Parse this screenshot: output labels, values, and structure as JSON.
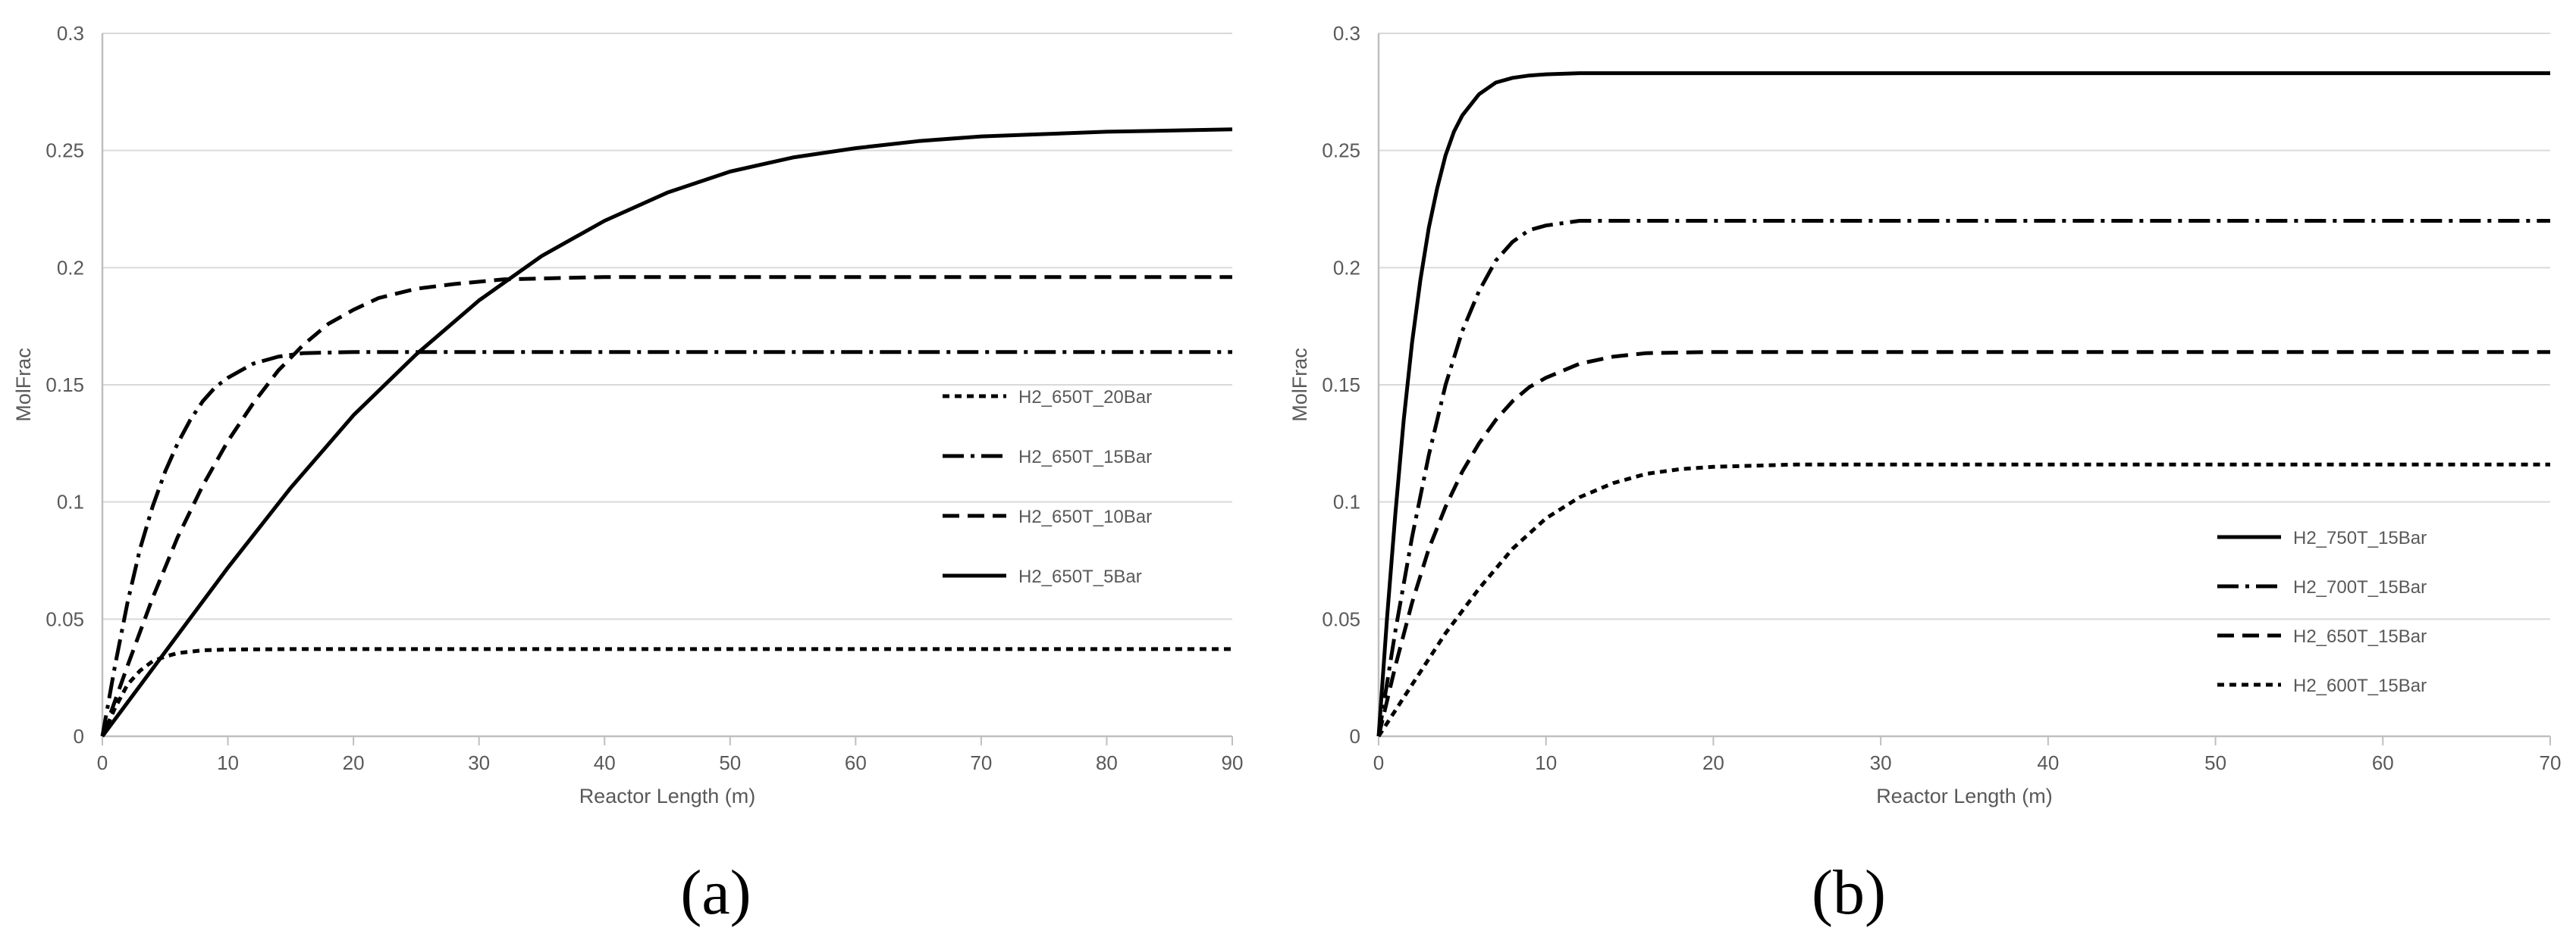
{
  "captions": {
    "a": "(a)",
    "b": "(b)"
  },
  "colors": {
    "line": "#000000",
    "grid": "#d9d9d9",
    "axis": "#bfbfbf",
    "text": "#595959"
  },
  "chart_data": [
    {
      "type": "line",
      "xlabel": "Reactor Length (m)",
      "ylabel": "MolFrac",
      "xlim": [
        0,
        90
      ],
      "ylim": [
        0,
        0.3
      ],
      "xticks": [
        0,
        10,
        20,
        30,
        40,
        50,
        60,
        70,
        80,
        90
      ],
      "yticks": [
        0,
        0.05,
        0.1,
        0.15,
        0.2,
        0.25,
        0.3
      ],
      "ytick_labels": [
        "0",
        "0.05",
        "0.1",
        "0.15",
        "0.2",
        "0.25",
        "0.3"
      ],
      "grid": "horizontal",
      "legend_position": "right",
      "series": [
        {
          "name": "H2_650T_20Bar",
          "style": "dotted",
          "x": [
            0,
            1,
            2,
            3,
            4,
            5,
            6,
            8,
            10,
            15,
            20,
            30,
            50,
            70,
            90
          ],
          "y": [
            0,
            0.012,
            0.022,
            0.028,
            0.032,
            0.034,
            0.0355,
            0.0367,
            0.037,
            0.0372,
            0.0372,
            0.0372,
            0.0372,
            0.0372,
            0.0372
          ]
        },
        {
          "name": "H2_650T_15Bar",
          "style": "dashdot",
          "x": [
            0,
            1,
            2,
            3,
            4,
            5,
            6,
            7,
            8,
            9,
            10,
            12,
            14,
            16,
            20,
            30,
            50,
            70,
            90
          ],
          "y": [
            0,
            0.03,
            0.057,
            0.08,
            0.098,
            0.113,
            0.125,
            0.135,
            0.143,
            0.149,
            0.153,
            0.159,
            0.162,
            0.1635,
            0.164,
            0.164,
            0.164,
            0.164,
            0.164
          ]
        },
        {
          "name": "H2_650T_10Bar",
          "style": "dashed",
          "x": [
            0,
            2,
            4,
            6,
            8,
            10,
            12,
            14,
            16,
            18,
            20,
            22,
            25,
            28,
            32,
            40,
            50,
            70,
            90
          ],
          "y": [
            0,
            0.03,
            0.059,
            0.085,
            0.107,
            0.126,
            0.142,
            0.156,
            0.167,
            0.176,
            0.182,
            0.187,
            0.191,
            0.193,
            0.195,
            0.196,
            0.196,
            0.196,
            0.196
          ]
        },
        {
          "name": "H2_650T_5Bar",
          "style": "solid",
          "x": [
            0,
            5,
            10,
            15,
            20,
            25,
            30,
            35,
            40,
            45,
            50,
            55,
            60,
            65,
            70,
            75,
            80,
            85,
            90
          ],
          "y": [
            0,
            0.036,
            0.072,
            0.106,
            0.137,
            0.163,
            0.186,
            0.205,
            0.22,
            0.232,
            0.241,
            0.247,
            0.251,
            0.254,
            0.256,
            0.257,
            0.258,
            0.2585,
            0.259
          ]
        }
      ]
    },
    {
      "type": "line",
      "xlabel": "Reactor Length (m)",
      "ylabel": "MolFrac",
      "xlim": [
        0,
        70
      ],
      "ylim": [
        0,
        0.3
      ],
      "xticks": [
        0,
        10,
        20,
        30,
        40,
        50,
        60,
        70
      ],
      "yticks": [
        0,
        0.05,
        0.1,
        0.15,
        0.2,
        0.25,
        0.3
      ],
      "ytick_labels": [
        "0",
        "0.05",
        "0.1",
        "0.15",
        "0.2",
        "0.25",
        "0.3"
      ],
      "grid": "horizontal",
      "legend_position": "right",
      "series": [
        {
          "name": "H2_750T_15Bar",
          "style": "solid",
          "x": [
            0,
            0.5,
            1,
            1.5,
            2,
            2.5,
            3,
            3.5,
            4,
            4.5,
            5,
            6,
            7,
            8,
            9,
            10,
            12,
            15,
            20,
            40,
            70
          ],
          "y": [
            0,
            0.05,
            0.095,
            0.135,
            0.168,
            0.195,
            0.217,
            0.234,
            0.248,
            0.258,
            0.265,
            0.274,
            0.279,
            0.281,
            0.282,
            0.2825,
            0.283,
            0.283,
            0.283,
            0.283,
            0.283
          ]
        },
        {
          "name": "H2_700T_15Bar",
          "style": "dashdot",
          "x": [
            0,
            1,
            2,
            3,
            4,
            5,
            6,
            7,
            8,
            9,
            10,
            12,
            15,
            20,
            40,
            70
          ],
          "y": [
            0,
            0.045,
            0.085,
            0.12,
            0.15,
            0.173,
            0.19,
            0.203,
            0.211,
            0.216,
            0.218,
            0.22,
            0.22,
            0.22,
            0.22,
            0.22
          ]
        },
        {
          "name": "H2_650T_15Bar",
          "style": "dashed",
          "x": [
            0,
            1,
            2,
            3,
            4,
            5,
            6,
            7,
            8,
            9,
            10,
            12,
            14,
            16,
            20,
            30,
            50,
            70
          ],
          "y": [
            0,
            0.03,
            0.057,
            0.08,
            0.098,
            0.113,
            0.125,
            0.135,
            0.143,
            0.149,
            0.153,
            0.159,
            0.162,
            0.1635,
            0.164,
            0.164,
            0.164,
            0.164
          ]
        },
        {
          "name": "H2_600T_15Bar",
          "style": "dotted",
          "x": [
            0,
            2,
            4,
            6,
            8,
            10,
            12,
            14,
            16,
            18,
            20,
            25,
            30,
            40,
            50,
            70
          ],
          "y": [
            0,
            0.022,
            0.044,
            0.063,
            0.08,
            0.093,
            0.102,
            0.108,
            0.112,
            0.114,
            0.115,
            0.116,
            0.116,
            0.116,
            0.116,
            0.116
          ]
        }
      ]
    }
  ]
}
